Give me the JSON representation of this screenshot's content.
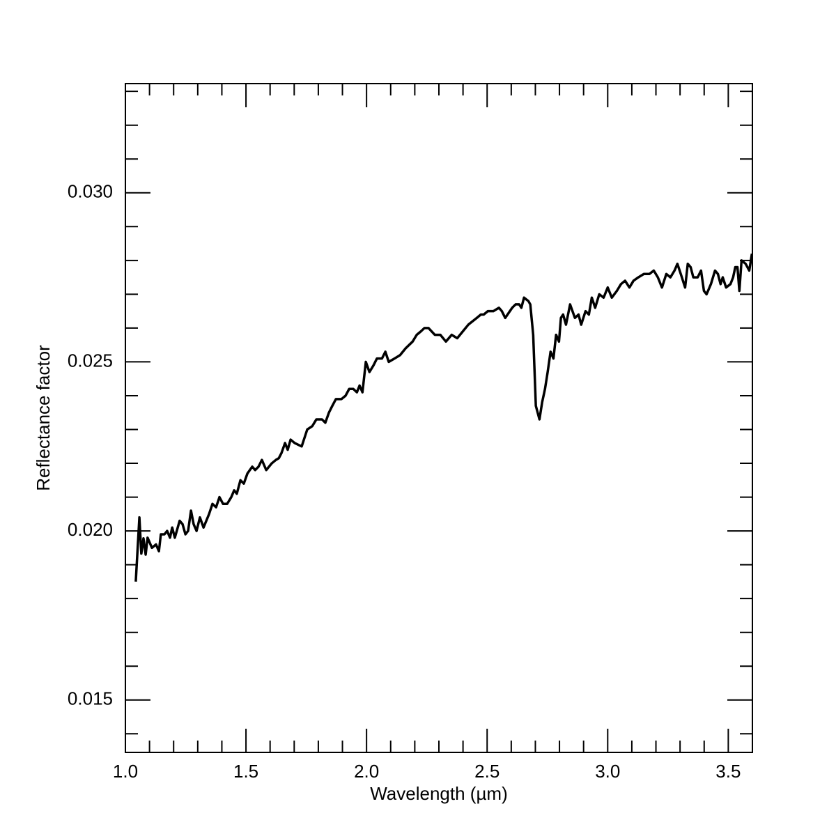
{
  "chart_data": {
    "type": "line",
    "xlabel": "Wavelength (µm)",
    "ylabel": "Reflectance factor",
    "xlim": [
      1.0,
      3.6
    ],
    "ylim": [
      0.01345,
      0.03323
    ],
    "xticks": [
      {
        "value": 1.0,
        "label": "1.0"
      },
      {
        "value": 1.5,
        "label": "1.5"
      },
      {
        "value": 2.0,
        "label": "2.0"
      },
      {
        "value": 2.5,
        "label": "2.5"
      },
      {
        "value": 3.0,
        "label": "3.0"
      },
      {
        "value": 3.5,
        "label": "3.5"
      }
    ],
    "yticks": [
      {
        "value": 0.015,
        "label": "0.015"
      },
      {
        "value": 0.02,
        "label": "0.020"
      },
      {
        "value": 0.025,
        "label": "0.025"
      },
      {
        "value": 0.03,
        "label": "0.030"
      }
    ],
    "xminorticks": [
      1.1,
      1.2,
      1.3,
      1.4,
      1.6,
      1.7,
      1.8,
      1.9,
      2.1,
      2.2,
      2.3,
      2.4,
      2.6,
      2.7,
      2.8,
      2.9,
      3.1,
      3.2,
      3.3,
      3.4
    ],
    "yminorticks": [
      0.014,
      0.016,
      0.017,
      0.018,
      0.019,
      0.021,
      0.022,
      0.023,
      0.024,
      0.026,
      0.027,
      0.028,
      0.029,
      0.031,
      0.032,
      0.033
    ],
    "color": "#000000",
    "x": [
      1.043,
      1.058,
      1.066,
      1.075,
      1.084,
      1.092,
      1.11,
      1.127,
      1.139,
      1.147,
      1.162,
      1.173,
      1.185,
      1.194,
      1.205,
      1.225,
      1.237,
      1.249,
      1.26,
      1.272,
      1.283,
      1.295,
      1.309,
      1.324,
      1.347,
      1.361,
      1.376,
      1.39,
      1.405,
      1.422,
      1.439,
      1.451,
      1.462,
      1.477,
      1.491,
      1.506,
      1.526,
      1.538,
      1.552,
      1.566,
      1.584,
      1.607,
      1.624,
      1.636,
      1.647,
      1.662,
      1.673,
      1.685,
      1.702,
      1.731,
      1.754,
      1.775,
      1.792,
      1.815,
      1.829,
      1.844,
      1.858,
      1.873,
      1.896,
      1.913,
      1.928,
      1.945,
      1.96,
      1.971,
      1.983,
      1.997,
      2.012,
      2.029,
      2.043,
      2.064,
      2.078,
      2.092,
      2.116,
      2.139,
      2.162,
      2.191,
      2.208,
      2.225,
      2.24,
      2.257,
      2.283,
      2.306,
      2.329,
      2.353,
      2.376,
      2.399,
      2.422,
      2.457,
      2.474,
      2.486,
      2.503,
      2.526,
      2.549,
      2.561,
      2.575,
      2.604,
      2.618,
      2.633,
      2.642,
      2.653,
      2.671,
      2.679,
      2.691,
      2.702,
      2.717,
      2.728,
      2.74,
      2.751,
      2.763,
      2.775,
      2.786,
      2.798,
      2.806,
      2.815,
      2.827,
      2.844,
      2.864,
      2.879,
      2.89,
      2.908,
      2.922,
      2.934,
      2.948,
      2.965,
      2.983,
      3.0,
      3.017,
      3.038,
      3.055,
      3.072,
      3.09,
      3.107,
      3.127,
      3.15,
      3.173,
      3.191,
      3.208,
      3.225,
      3.243,
      3.26,
      3.277,
      3.289,
      3.303,
      3.321,
      3.332,
      3.344,
      3.355,
      3.373,
      3.387,
      3.399,
      3.41,
      3.428,
      3.445,
      3.457,
      3.468,
      3.477,
      3.491,
      3.509,
      3.52,
      3.529,
      3.538,
      3.546,
      3.555,
      3.572,
      3.587,
      3.598
    ],
    "values": [
      0.0185,
      0.0204,
      0.01933,
      0.01978,
      0.0193,
      0.0198,
      0.0195,
      0.0196,
      0.0194,
      0.0199,
      0.0199,
      0.02,
      0.0198,
      0.0201,
      0.0198,
      0.0203,
      0.0202,
      0.0199,
      0.02,
      0.0206,
      0.0202,
      0.02,
      0.0204,
      0.0201,
      0.0205,
      0.0208,
      0.0207,
      0.021,
      0.0208,
      0.0208,
      0.021,
      0.0212,
      0.0211,
      0.0215,
      0.0214,
      0.0217,
      0.0219,
      0.0218,
      0.0219,
      0.0221,
      0.0218,
      0.022,
      0.0221,
      0.02215,
      0.0223,
      0.0226,
      0.0224,
      0.0227,
      0.0226,
      0.0225,
      0.023,
      0.0231,
      0.0233,
      0.0233,
      0.0232,
      0.0235,
      0.0237,
      0.0239,
      0.0239,
      0.024,
      0.0242,
      0.0242,
      0.0241,
      0.0243,
      0.0241,
      0.025,
      0.0247,
      0.0249,
      0.0251,
      0.0251,
      0.0253,
      0.025,
      0.0251,
      0.0252,
      0.0254,
      0.0256,
      0.0258,
      0.0259,
      0.026,
      0.026,
      0.0258,
      0.0258,
      0.0256,
      0.0258,
      0.0257,
      0.0259,
      0.0261,
      0.0263,
      0.0264,
      0.0264,
      0.0265,
      0.0265,
      0.0266,
      0.0265,
      0.0263,
      0.0266,
      0.0267,
      0.0267,
      0.0266,
      0.0269,
      0.0268,
      0.0267,
      0.0258,
      0.0237,
      0.0233,
      0.0238,
      0.0242,
      0.0247,
      0.0253,
      0.0251,
      0.0258,
      0.0256,
      0.0263,
      0.0264,
      0.0261,
      0.0267,
      0.0263,
      0.0264,
      0.0261,
      0.0265,
      0.0264,
      0.0269,
      0.0266,
      0.027,
      0.0269,
      0.0272,
      0.0269,
      0.0271,
      0.0273,
      0.0274,
      0.0272,
      0.0274,
      0.0275,
      0.0276,
      0.0276,
      0.0277,
      0.0275,
      0.0272,
      0.0276,
      0.0275,
      0.0277,
      0.0279,
      0.0276,
      0.0272,
      0.0279,
      0.0278,
      0.0275,
      0.0275,
      0.0277,
      0.0271,
      0.027,
      0.0273,
      0.0277,
      0.0276,
      0.0273,
      0.0275,
      0.0272,
      0.0273,
      0.0275,
      0.0278,
      0.0278,
      0.0271,
      0.028,
      0.0279,
      0.0277,
      0.0282
    ]
  }
}
